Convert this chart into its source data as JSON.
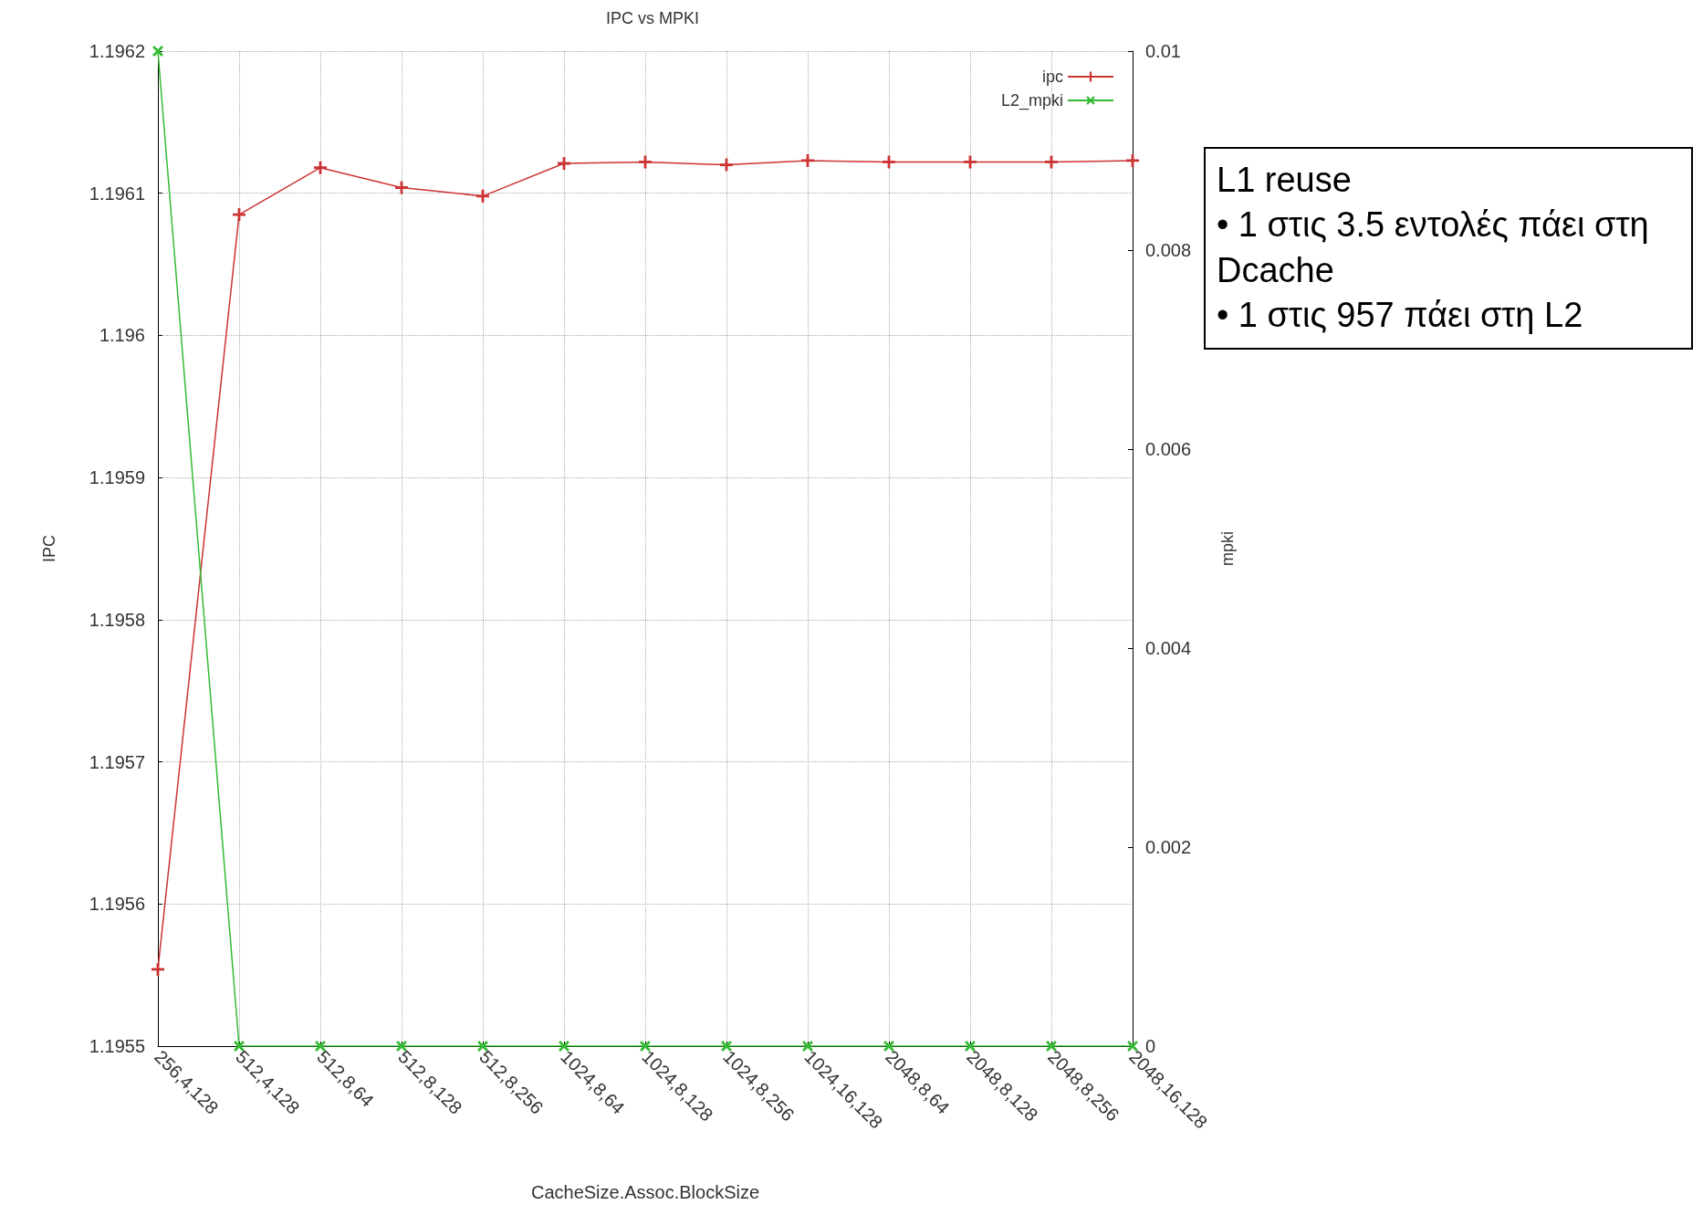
{
  "chart_data": {
    "type": "line",
    "title": "IPC vs MPKI",
    "xlabel": "CacheSize.Assoc.BlockSize",
    "ylabel": "IPC",
    "y2label": "mpki",
    "categories": [
      "256,4,128",
      "512,4,128",
      "512,8,64",
      "512,8,128",
      "512,8,256",
      "1024,8,64",
      "1024,8,128",
      "1024,8,256",
      "1024,16,128",
      "2048,8,64",
      "2048,8,128",
      "2048,8,256",
      "2048,16,128"
    ],
    "series": [
      {
        "name": "ipc",
        "color": "#cc3333",
        "marker": "cross",
        "values": [
          1.195554,
          1.196085,
          1.196118,
          1.196104,
          1.196098,
          1.196121,
          1.196122,
          1.19612,
          1.196123,
          1.196122,
          1.196122,
          1.196122,
          1.196123
        ]
      },
      {
        "name": "L2_mpki",
        "color": "#33bb33",
        "marker": "x",
        "axis": "y2",
        "values": [
          0.01,
          0,
          0,
          0,
          0,
          0,
          0,
          0,
          0,
          0,
          0,
          0,
          0
        ]
      }
    ],
    "ylim": [
      1.1955,
      1.1962
    ],
    "yticks": [
      1.1955,
      1.1956,
      1.1957,
      1.1958,
      1.1959,
      1.196,
      1.1961,
      1.1962
    ],
    "y2lim": [
      0,
      0.01
    ],
    "y2ticks": [
      0,
      0.002,
      0.004,
      0.006,
      0.008,
      0.01
    ],
    "grid": true,
    "legend": "top right",
    "annotations": [
      "L1 reuse",
      "• 1 στις 3.5 εντολές πάει στη Dcache",
      "• 1 στις 957 πάει στη L2"
    ]
  }
}
